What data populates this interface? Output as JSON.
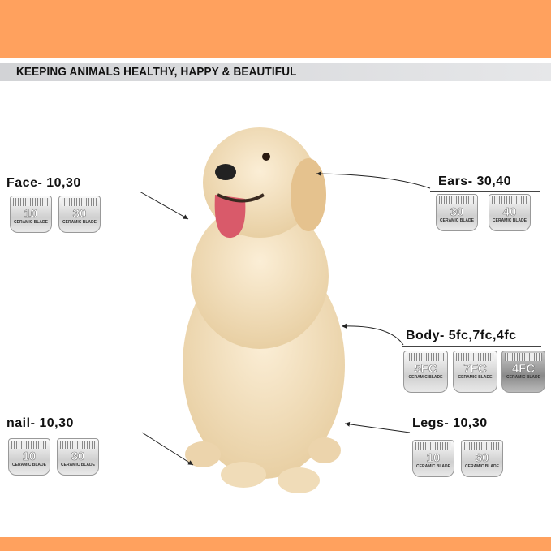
{
  "header": {
    "tagline": "KEEPING ANIMALS HEALTHY, HAPPY & BEAUTIFUL"
  },
  "colors": {
    "accent": "#FFA15E",
    "band": "#D2D3D6"
  },
  "sections": {
    "face": {
      "label": "Face- 10,30",
      "blades": [
        "10",
        "30"
      ]
    },
    "ears": {
      "label": "Ears- 30,40",
      "blades": [
        "30",
        "40"
      ]
    },
    "body": {
      "label": "Body- 5fc,7fc,4fc",
      "blades": [
        "5FC",
        "7FC",
        "4FC"
      ]
    },
    "nail": {
      "label": "nail- 10,30",
      "blades": [
        "10",
        "30"
      ]
    },
    "legs": {
      "label": "Legs- 10,30",
      "blades": [
        "10",
        "30"
      ]
    }
  },
  "blade_text": "CERAMIC BLADE"
}
